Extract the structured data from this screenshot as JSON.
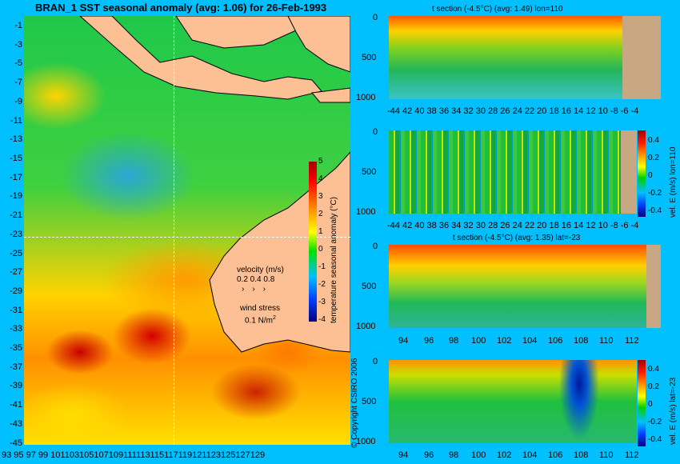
{
  "main_title": "BRAN_1  SST seasonal anomaly (avg: 1.06) for 26-Feb-1993",
  "map": {
    "lat_ticks": [
      "-1",
      "-3",
      "-5",
      "-7",
      "-9",
      "-11",
      "-13",
      "-15",
      "-17",
      "-19",
      "-21",
      "-23",
      "-25",
      "-27",
      "-29",
      "-31",
      "-33",
      "-35",
      "-37",
      "-39",
      "-41",
      "-43",
      "-45"
    ],
    "lon_ticks": [
      "93",
      "95",
      "97",
      "99",
      "101",
      "103",
      "105",
      "107",
      "109",
      "111",
      "113",
      "115",
      "117",
      "119",
      "121",
      "123",
      "125",
      "127",
      "129"
    ],
    "lon_ticks_text": "93  95  97  99 101103105107109111113115117119121123125127129",
    "colorbar_ticks": [
      "5",
      "4",
      "3",
      "2",
      "1",
      "0",
      "-1",
      "-2",
      "-3",
      "-4"
    ],
    "colorbar_label": "temperature seasonal anomaly (°C)",
    "velocity_title": "velocity (m/s)",
    "velocity_values": "0.2 0.4 0.8",
    "wind_title": "wind stress",
    "wind_value": "0.1 N/m",
    "wind_exp": "2",
    "copyright": "© Copyright CSIRO 2006"
  },
  "panels": {
    "p1": {
      "title": "t section (-4.5°C) (avg: 1.49) lon=110",
      "y_ticks": [
        "0",
        "500",
        "1000"
      ],
      "x_ticks_text": "-44 42 40 38 36 34 32 30 28 26 24 22 20 18 16 14 12 10 -8  -6  -4"
    },
    "p2": {
      "y_ticks": [
        "0",
        "500",
        "1000"
      ],
      "x_ticks_text": "-44 42 40 38 36 34 32 30 28 26 24 22 20 18 16 14 12 10 -8  -6  -4",
      "cb_ticks": [
        "0.4",
        "0.2",
        "0",
        "-0.2",
        "-0.4"
      ],
      "cb_label": "vel. E (m/s) lon=110"
    },
    "p3": {
      "title": "t section (-4.5°C) (avg: 1.35) lat=-23",
      "y_ticks": [
        "0",
        "500",
        "1000"
      ],
      "x_ticks": [
        "94",
        "96",
        "98",
        "100",
        "102",
        "104",
        "106",
        "108",
        "110",
        "112"
      ]
    },
    "p4": {
      "y_ticks": [
        "0",
        "500",
        "1000"
      ],
      "x_ticks": [
        "94",
        "96",
        "98",
        "100",
        "102",
        "104",
        "106",
        "108",
        "110",
        "112"
      ],
      "cb_ticks": [
        "0.4",
        "0.2",
        "0",
        "-0.2",
        "-0.4"
      ],
      "cb_label": "vel. E (m/s) lat=-23"
    }
  }
}
